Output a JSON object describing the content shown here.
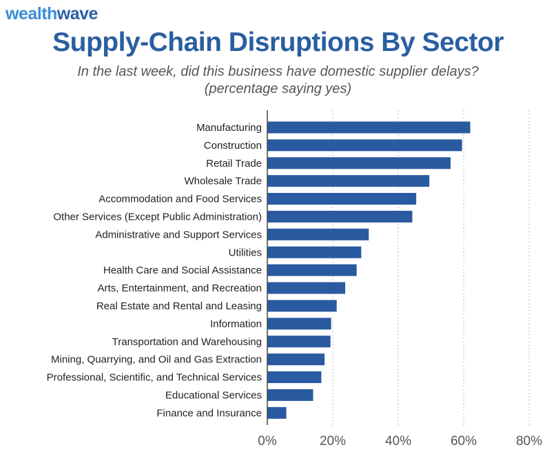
{
  "brand": {
    "part1": "wealth",
    "part2": "wave"
  },
  "colors": {
    "bar": "#2a5aa0",
    "title": "#2a5fa0",
    "brand_light": "#3a8ed8",
    "grid": "#bbbbbb"
  },
  "chart_data": {
    "type": "bar",
    "orientation": "horizontal",
    "title": "Supply-Chain Disruptions By Sector",
    "subtitle_line1": "In the last week, did this business have domestic supplier delays?",
    "subtitle_line2": "(percentage saying yes)",
    "categories": [
      "Manufacturing",
      "Construction",
      "Retail Trade",
      "Wholesale Trade",
      "Accommodation and Food Services",
      "Other Services (Except Public Administration)",
      "Administrative and Support Services",
      "Utilities",
      "Health Care and Social Assistance",
      "Arts, Entertainment, and Recreation",
      "Real Estate and Rental and Leasing",
      "Information",
      "Transportation and Warehousing",
      "Mining, Quarrying, and Oil and Gas Extraction",
      "Professional, Scientific, and Technical Services",
      "Educational Services",
      "Finance and Insurance"
    ],
    "values": [
      62,
      59.5,
      56,
      49.5,
      45.5,
      44.3,
      31,
      28.7,
      27.3,
      23.8,
      21.2,
      19.5,
      19.3,
      17.5,
      16.5,
      14,
      5.8
    ],
    "xlim": [
      0,
      80
    ],
    "xticks": [
      0,
      20,
      40,
      60,
      80
    ],
    "xtick_labels": [
      "0%",
      "20%",
      "40%",
      "60%",
      "80%"
    ],
    "grid": "vertical dashed"
  }
}
